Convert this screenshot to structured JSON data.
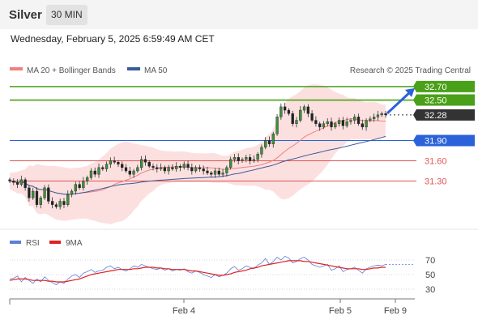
{
  "header": {
    "symbol": "Silver",
    "timeframe": "30 MIN",
    "datetime": "Wednesday, February 5, 2025 6:59:49 AM CET"
  },
  "colors": {
    "green": "#4aa018",
    "blue": "#2b62d9",
    "red": "#e05555",
    "dark": "#333333",
    "band": "#fbd6d6",
    "ma50": "#3a5a9a",
    "rsi": "#5b7fd6",
    "rsi_ma": "#e02020"
  },
  "chart_data": [
    {
      "type": "candlestick",
      "legend": [
        {
          "name": "MA 20 + Bollinger Bands",
          "color": "#f08080"
        },
        {
          "name": "MA 50",
          "color": "#3a5a9a"
        }
      ],
      "legend_position": "top-left",
      "credit": "Research © 2025 Trading Central",
      "ylim": [
        30.75,
        33.0
      ],
      "levels": [
        {
          "value": 32.7,
          "label": "32.70",
          "color": "#4aa018",
          "style": "solid",
          "tag": "filled"
        },
        {
          "value": 32.5,
          "label": "32.50",
          "color": "#4aa018",
          "style": "solid",
          "tag": "filled"
        },
        {
          "value": 32.28,
          "label": "32.28",
          "color": "#333333",
          "style": "dotted",
          "tag": "filled"
        },
        {
          "value": 31.9,
          "label": "31.90",
          "color": "#2b62d9",
          "style": "solid",
          "tag": "filled"
        },
        {
          "value": 31.6,
          "label": "31.60",
          "color": "#e05555",
          "style": "solid",
          "tag": "text"
        },
        {
          "value": 31.3,
          "label": "31.30",
          "color": "#e05555",
          "style": "solid",
          "tag": "text"
        }
      ],
      "arrow": {
        "from": 32.28,
        "to": 32.7,
        "direction": "up"
      },
      "x_ticks": [
        "Feb 4",
        "Feb 5",
        "Feb 9"
      ],
      "price_path": [
        31.3,
        31.28,
        31.25,
        31.32,
        31.2,
        31.05,
        31.15,
        30.95,
        31.05,
        31.2,
        31.0,
        30.95,
        30.92,
        31.0,
        30.95,
        31.1,
        31.15,
        31.25,
        31.2,
        31.3,
        31.35,
        31.45,
        31.4,
        31.5,
        31.48,
        31.55,
        31.6,
        31.58,
        31.55,
        31.5,
        31.45,
        31.4,
        31.45,
        31.5,
        31.62,
        31.58,
        31.52,
        31.5,
        31.48,
        31.5,
        31.45,
        31.5,
        31.48,
        31.52,
        31.5,
        31.55,
        31.5,
        31.45,
        31.5,
        31.48,
        31.45,
        31.42,
        31.4,
        31.45,
        31.4,
        31.42,
        31.5,
        31.62,
        31.65,
        31.6,
        31.62,
        31.65,
        31.6,
        31.62,
        31.7,
        31.8,
        31.9,
        31.85,
        32.0,
        32.25,
        32.4,
        32.35,
        32.3,
        32.15,
        32.2,
        32.35,
        32.4,
        32.3,
        32.2,
        32.15,
        32.1,
        32.15,
        32.18,
        32.1,
        32.15,
        32.2,
        32.12,
        32.18,
        32.2,
        32.25,
        32.15,
        32.1,
        32.2,
        32.22,
        32.25,
        32.28,
        32.3,
        32.28
      ]
    },
    {
      "type": "line",
      "legend": [
        {
          "name": "RSI",
          "color": "#5b7fd6"
        },
        {
          "name": "9MA",
          "color": "#e02020"
        }
      ],
      "ylim": [
        20,
        80
      ],
      "y_ticks": [
        70,
        50,
        30
      ],
      "series": [
        {
          "name": "RSI",
          "values": [
            44,
            45,
            48,
            40,
            46,
            42,
            38,
            44,
            40,
            47,
            42,
            39,
            36,
            40,
            38,
            44,
            48,
            50,
            46,
            52,
            54,
            57,
            53,
            55,
            56,
            60,
            62,
            58,
            60,
            57,
            55,
            58,
            62,
            60,
            64,
            62,
            60,
            58,
            57,
            59,
            56,
            58,
            55,
            57,
            56,
            58,
            54,
            52,
            55,
            53,
            50,
            48,
            46,
            50,
            47,
            49,
            52,
            58,
            61,
            56,
            58,
            62,
            60,
            58,
            63,
            66,
            72,
            64,
            68,
            74,
            70,
            75,
            73,
            66,
            68,
            72,
            74,
            70,
            64,
            62,
            60,
            62,
            64,
            56,
            58,
            62,
            54,
            57,
            58,
            60,
            56,
            52,
            58,
            60,
            62,
            63,
            62,
            64
          ]
        },
        {
          "name": "9MA",
          "values": [
            42,
            43,
            44,
            44,
            44,
            43,
            42,
            42,
            42,
            42,
            41,
            41,
            40,
            40,
            40,
            41,
            42,
            43,
            44,
            46,
            48,
            50,
            51,
            52,
            53,
            54,
            55,
            56,
            57,
            57,
            57,
            57,
            58,
            58,
            59,
            60,
            60,
            60,
            59,
            59,
            58,
            58,
            57,
            57,
            57,
            57,
            56,
            55,
            55,
            54,
            53,
            52,
            51,
            50,
            49,
            49,
            50,
            51,
            53,
            54,
            55,
            56,
            58,
            59,
            60,
            62,
            63,
            64,
            65,
            66,
            67,
            68,
            69,
            69,
            69,
            69,
            68,
            68,
            67,
            66,
            65,
            64,
            63,
            62,
            61,
            60,
            59,
            58,
            58,
            58,
            58,
            57,
            57,
            58,
            59,
            59,
            60,
            60
          ]
        }
      ]
    }
  ]
}
